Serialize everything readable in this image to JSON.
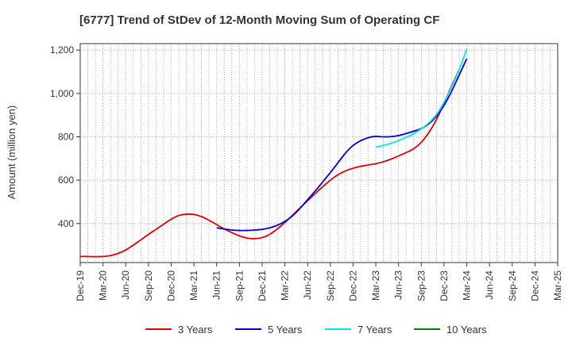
{
  "chart_data": {
    "type": "line",
    "title": "[6777]  Trend of StDev of 12-Month Moving Sum of Operating CF",
    "xlabel": "",
    "ylabel": "Amount (million yen)",
    "ylim": [
      220,
      1230
    ],
    "yticks": [
      400,
      600,
      800,
      1000,
      1200
    ],
    "ytick_labels": [
      "400",
      "600",
      "800",
      "1,000",
      "1,200"
    ],
    "xtick_labels": [
      "Dec-19",
      "Mar-20",
      "Jun-20",
      "Sep-20",
      "Dec-20",
      "Mar-21",
      "Jun-21",
      "Sep-21",
      "Dec-21",
      "Mar-22",
      "Jun-22",
      "Sep-22",
      "Dec-22",
      "Mar-23",
      "Jun-23",
      "Sep-23",
      "Dec-23",
      "Mar-24",
      "Jun-24",
      "Sep-24",
      "Dec-24",
      "Mar-25"
    ],
    "grid": true,
    "legend_position": "bottom",
    "series": [
      {
        "name": "3 Years",
        "color": "#e00000",
        "points": [
          [
            0,
            248
          ],
          [
            1,
            248
          ],
          [
            2,
            247
          ],
          [
            3,
            248
          ],
          [
            4,
            252
          ],
          [
            5,
            262
          ],
          [
            6,
            278
          ],
          [
            7,
            300
          ],
          [
            8,
            325
          ],
          [
            9,
            350
          ],
          [
            10,
            373
          ],
          [
            11,
            397
          ],
          [
            12,
            420
          ],
          [
            13,
            437
          ],
          [
            14,
            443
          ],
          [
            15,
            442
          ],
          [
            16,
            432
          ],
          [
            17,
            415
          ],
          [
            18,
            395
          ],
          [
            19,
            375
          ],
          [
            20,
            358
          ],
          [
            21,
            343
          ],
          [
            22,
            333
          ],
          [
            23,
            330
          ],
          [
            24,
            335
          ],
          [
            25,
            350
          ],
          [
            26,
            375
          ],
          [
            27,
            405
          ],
          [
            28,
            438
          ],
          [
            29,
            472
          ],
          [
            30,
            505
          ],
          [
            31,
            538
          ],
          [
            32,
            570
          ],
          [
            33,
            600
          ],
          [
            34,
            625
          ],
          [
            35,
            643
          ],
          [
            36,
            655
          ],
          [
            37,
            664
          ],
          [
            38,
            670
          ],
          [
            39,
            676
          ],
          [
            40,
            685
          ],
          [
            41,
            697
          ],
          [
            42,
            712
          ],
          [
            43,
            727
          ],
          [
            44,
            745
          ],
          [
            45,
            775
          ],
          [
            46,
            820
          ],
          [
            47,
            880
          ],
          [
            48,
            955
          ],
          [
            49,
            1035
          ],
          [
            50,
            1110
          ]
        ]
      },
      {
        "name": "5 Years",
        "color": "#0000cc",
        "points": [
          [
            18,
            380
          ],
          [
            19,
            375
          ],
          [
            20,
            370
          ],
          [
            21,
            368
          ],
          [
            22,
            368
          ],
          [
            23,
            370
          ],
          [
            24,
            373
          ],
          [
            25,
            380
          ],
          [
            26,
            392
          ],
          [
            27,
            410
          ],
          [
            28,
            435
          ],
          [
            29,
            470
          ],
          [
            30,
            510
          ],
          [
            31,
            550
          ],
          [
            32,
            592
          ],
          [
            33,
            635
          ],
          [
            34,
            680
          ],
          [
            35,
            725
          ],
          [
            36,
            760
          ],
          [
            37,
            782
          ],
          [
            38,
            796
          ],
          [
            39,
            802
          ],
          [
            40,
            800
          ],
          [
            41,
            801
          ],
          [
            42,
            806
          ],
          [
            43,
            815
          ],
          [
            44,
            826
          ],
          [
            45,
            838
          ],
          [
            46,
            860
          ],
          [
            47,
            895
          ],
          [
            48,
            945
          ],
          [
            49,
            1010
          ],
          [
            50,
            1085
          ],
          [
            51,
            1160
          ]
        ]
      },
      {
        "name": "7 Years",
        "color": "#00e5ee",
        "points": [
          [
            39,
            753
          ],
          [
            40,
            760
          ],
          [
            41,
            770
          ],
          [
            42,
            783
          ],
          [
            43,
            798
          ],
          [
            44,
            815
          ],
          [
            45,
            837
          ],
          [
            46,
            865
          ],
          [
            47,
            903
          ],
          [
            48,
            960
          ],
          [
            49,
            1030
          ],
          [
            50,
            1110
          ],
          [
            51,
            1205
          ]
        ]
      },
      {
        "name": "10 Years",
        "color": "#008000",
        "points": []
      }
    ]
  }
}
